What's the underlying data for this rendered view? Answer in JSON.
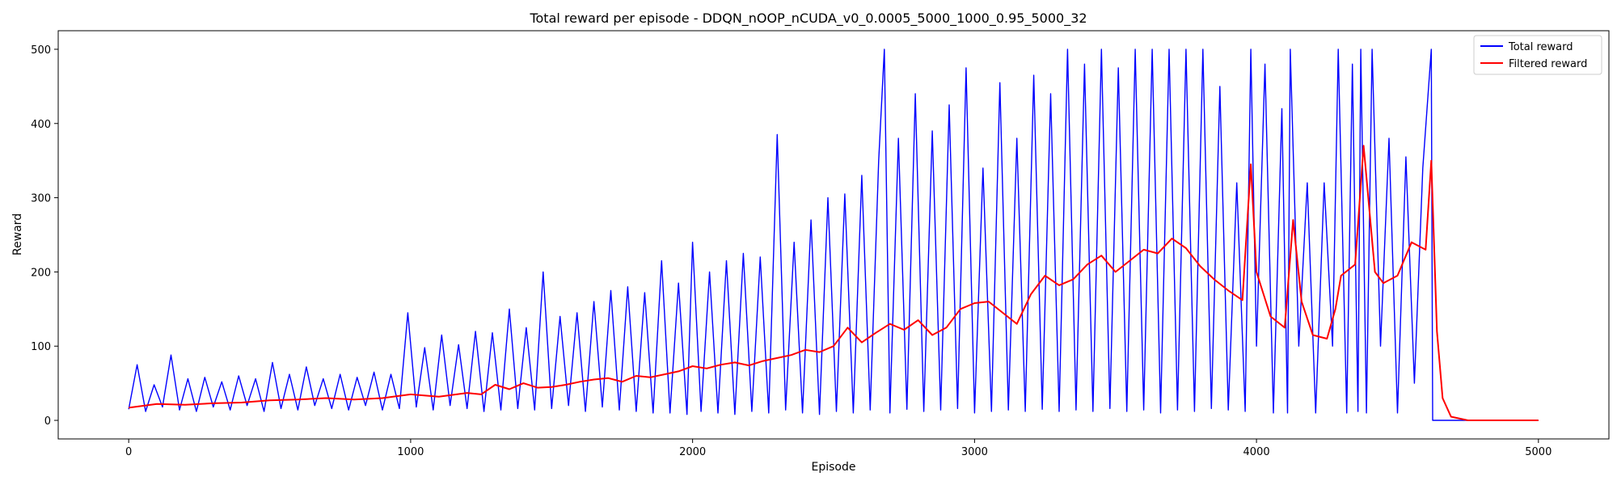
{
  "chart_data": {
    "type": "line",
    "title": "Total reward per episode - DDQN_nOOP_nCUDA_v0_0.0005_5000_1000_0.95_5000_32",
    "xlabel": "Episode",
    "ylabel": "Reward",
    "xlim": [
      -250,
      5250
    ],
    "ylim": [
      -25,
      525
    ],
    "xticks": [
      0,
      1000,
      2000,
      3000,
      4000,
      5000
    ],
    "yticks": [
      0,
      100,
      200,
      300,
      400,
      500
    ],
    "legend_position": "top-right",
    "grid": false,
    "series": [
      {
        "name": "Total reward",
        "color": "#0000ff",
        "points": [
          [
            0,
            15
          ],
          [
            30,
            75
          ],
          [
            60,
            12
          ],
          [
            90,
            48
          ],
          [
            120,
            18
          ],
          [
            150,
            88
          ],
          [
            180,
            14
          ],
          [
            210,
            56
          ],
          [
            240,
            12
          ],
          [
            270,
            58
          ],
          [
            300,
            18
          ],
          [
            330,
            52
          ],
          [
            360,
            14
          ],
          [
            390,
            60
          ],
          [
            420,
            20
          ],
          [
            450,
            56
          ],
          [
            480,
            12
          ],
          [
            510,
            78
          ],
          [
            540,
            16
          ],
          [
            570,
            62
          ],
          [
            600,
            14
          ],
          [
            630,
            72
          ],
          [
            660,
            20
          ],
          [
            690,
            56
          ],
          [
            720,
            16
          ],
          [
            750,
            62
          ],
          [
            780,
            14
          ],
          [
            810,
            58
          ],
          [
            840,
            20
          ],
          [
            870,
            65
          ],
          [
            900,
            14
          ],
          [
            930,
            62
          ],
          [
            960,
            16
          ],
          [
            990,
            145
          ],
          [
            1020,
            18
          ],
          [
            1050,
            98
          ],
          [
            1080,
            14
          ],
          [
            1110,
            115
          ],
          [
            1140,
            20
          ],
          [
            1170,
            102
          ],
          [
            1200,
            16
          ],
          [
            1230,
            120
          ],
          [
            1260,
            12
          ],
          [
            1290,
            118
          ],
          [
            1320,
            14
          ],
          [
            1350,
            150
          ],
          [
            1380,
            16
          ],
          [
            1410,
            125
          ],
          [
            1440,
            14
          ],
          [
            1470,
            200
          ],
          [
            1500,
            16
          ],
          [
            1530,
            140
          ],
          [
            1560,
            20
          ],
          [
            1590,
            145
          ],
          [
            1620,
            12
          ],
          [
            1650,
            160
          ],
          [
            1680,
            18
          ],
          [
            1710,
            175
          ],
          [
            1740,
            14
          ],
          [
            1770,
            180
          ],
          [
            1800,
            12
          ],
          [
            1830,
            172
          ],
          [
            1860,
            10
          ],
          [
            1890,
            215
          ],
          [
            1920,
            10
          ],
          [
            1950,
            185
          ],
          [
            1980,
            8
          ],
          [
            2000,
            240
          ],
          [
            2030,
            12
          ],
          [
            2060,
            200
          ],
          [
            2090,
            10
          ],
          [
            2120,
            215
          ],
          [
            2150,
            8
          ],
          [
            2180,
            225
          ],
          [
            2210,
            12
          ],
          [
            2240,
            220
          ],
          [
            2270,
            10
          ],
          [
            2300,
            385
          ],
          [
            2330,
            14
          ],
          [
            2360,
            240
          ],
          [
            2390,
            10
          ],
          [
            2420,
            270
          ],
          [
            2450,
            8
          ],
          [
            2480,
            300
          ],
          [
            2510,
            12
          ],
          [
            2540,
            305
          ],
          [
            2570,
            10
          ],
          [
            2600,
            330
          ],
          [
            2630,
            14
          ],
          [
            2660,
            350
          ],
          [
            2680,
            500
          ],
          [
            2700,
            10
          ],
          [
            2730,
            380
          ],
          [
            2760,
            15
          ],
          [
            2790,
            440
          ],
          [
            2820,
            12
          ],
          [
            2850,
            390
          ],
          [
            2880,
            14
          ],
          [
            2910,
            425
          ],
          [
            2940,
            16
          ],
          [
            2970,
            475
          ],
          [
            3000,
            10
          ],
          [
            3030,
            340
          ],
          [
            3060,
            12
          ],
          [
            3090,
            455
          ],
          [
            3120,
            14
          ],
          [
            3150,
            380
          ],
          [
            3180,
            12
          ],
          [
            3210,
            465
          ],
          [
            3240,
            15
          ],
          [
            3270,
            440
          ],
          [
            3300,
            12
          ],
          [
            3330,
            500
          ],
          [
            3360,
            14
          ],
          [
            3390,
            480
          ],
          [
            3420,
            12
          ],
          [
            3450,
            500
          ],
          [
            3480,
            16
          ],
          [
            3510,
            475
          ],
          [
            3540,
            12
          ],
          [
            3570,
            500
          ],
          [
            3600,
            14
          ],
          [
            3630,
            500
          ],
          [
            3660,
            10
          ],
          [
            3690,
            500
          ],
          [
            3720,
            14
          ],
          [
            3750,
            500
          ],
          [
            3780,
            12
          ],
          [
            3810,
            500
          ],
          [
            3840,
            16
          ],
          [
            3870,
            450
          ],
          [
            3900,
            14
          ],
          [
            3930,
            320
          ],
          [
            3960,
            12
          ],
          [
            3980,
            500
          ],
          [
            4000,
            100
          ],
          [
            4030,
            480
          ],
          [
            4060,
            10
          ],
          [
            4090,
            420
          ],
          [
            4110,
            10
          ],
          [
            4120,
            500
          ],
          [
            4150,
            100
          ],
          [
            4180,
            320
          ],
          [
            4210,
            10
          ],
          [
            4240,
            320
          ],
          [
            4270,
            100
          ],
          [
            4290,
            500
          ],
          [
            4320,
            10
          ],
          [
            4340,
            480
          ],
          [
            4360,
            12
          ],
          [
            4370,
            500
          ],
          [
            4390,
            10
          ],
          [
            4410,
            500
          ],
          [
            4440,
            100
          ],
          [
            4470,
            380
          ],
          [
            4500,
            10
          ],
          [
            4530,
            355
          ],
          [
            4560,
            50
          ],
          [
            4590,
            340
          ],
          [
            4620,
            500
          ],
          [
            4625,
            0
          ],
          [
            5000,
            0
          ]
        ]
      },
      {
        "name": "Filtered reward",
        "color": "#ff0000",
        "points": [
          [
            0,
            17
          ],
          [
            100,
            22
          ],
          [
            200,
            21
          ],
          [
            300,
            23
          ],
          [
            400,
            24
          ],
          [
            500,
            27
          ],
          [
            600,
            28
          ],
          [
            700,
            30
          ],
          [
            800,
            28
          ],
          [
            900,
            30
          ],
          [
            1000,
            35
          ],
          [
            1100,
            32
          ],
          [
            1200,
            37
          ],
          [
            1250,
            35
          ],
          [
            1300,
            48
          ],
          [
            1350,
            42
          ],
          [
            1400,
            50
          ],
          [
            1450,
            44
          ],
          [
            1500,
            45
          ],
          [
            1550,
            48
          ],
          [
            1600,
            52
          ],
          [
            1650,
            55
          ],
          [
            1700,
            57
          ],
          [
            1750,
            52
          ],
          [
            1800,
            60
          ],
          [
            1850,
            58
          ],
          [
            1900,
            62
          ],
          [
            1950,
            66
          ],
          [
            2000,
            73
          ],
          [
            2050,
            70
          ],
          [
            2100,
            75
          ],
          [
            2150,
            78
          ],
          [
            2200,
            74
          ],
          [
            2250,
            80
          ],
          [
            2300,
            84
          ],
          [
            2350,
            88
          ],
          [
            2400,
            95
          ],
          [
            2450,
            92
          ],
          [
            2500,
            100
          ],
          [
            2550,
            125
          ],
          [
            2600,
            105
          ],
          [
            2650,
            118
          ],
          [
            2700,
            130
          ],
          [
            2750,
            122
          ],
          [
            2800,
            135
          ],
          [
            2850,
            115
          ],
          [
            2900,
            125
          ],
          [
            2950,
            150
          ],
          [
            3000,
            158
          ],
          [
            3050,
            160
          ],
          [
            3100,
            145
          ],
          [
            3150,
            130
          ],
          [
            3200,
            170
          ],
          [
            3250,
            195
          ],
          [
            3300,
            182
          ],
          [
            3350,
            190
          ],
          [
            3400,
            210
          ],
          [
            3450,
            222
          ],
          [
            3500,
            200
          ],
          [
            3550,
            215
          ],
          [
            3600,
            230
          ],
          [
            3650,
            225
          ],
          [
            3700,
            245
          ],
          [
            3750,
            232
          ],
          [
            3800,
            208
          ],
          [
            3850,
            190
          ],
          [
            3900,
            175
          ],
          [
            3950,
            162
          ],
          [
            3980,
            345
          ],
          [
            4000,
            200
          ],
          [
            4050,
            140
          ],
          [
            4100,
            125
          ],
          [
            4130,
            270
          ],
          [
            4160,
            160
          ],
          [
            4200,
            115
          ],
          [
            4250,
            110
          ],
          [
            4280,
            150
          ],
          [
            4300,
            195
          ],
          [
            4350,
            210
          ],
          [
            4380,
            370
          ],
          [
            4420,
            200
          ],
          [
            4450,
            185
          ],
          [
            4500,
            195
          ],
          [
            4550,
            240
          ],
          [
            4600,
            230
          ],
          [
            4620,
            350
          ],
          [
            4640,
            120
          ],
          [
            4660,
            30
          ],
          [
            4690,
            5
          ],
          [
            4750,
            0
          ],
          [
            5000,
            0
          ]
        ]
      }
    ]
  }
}
